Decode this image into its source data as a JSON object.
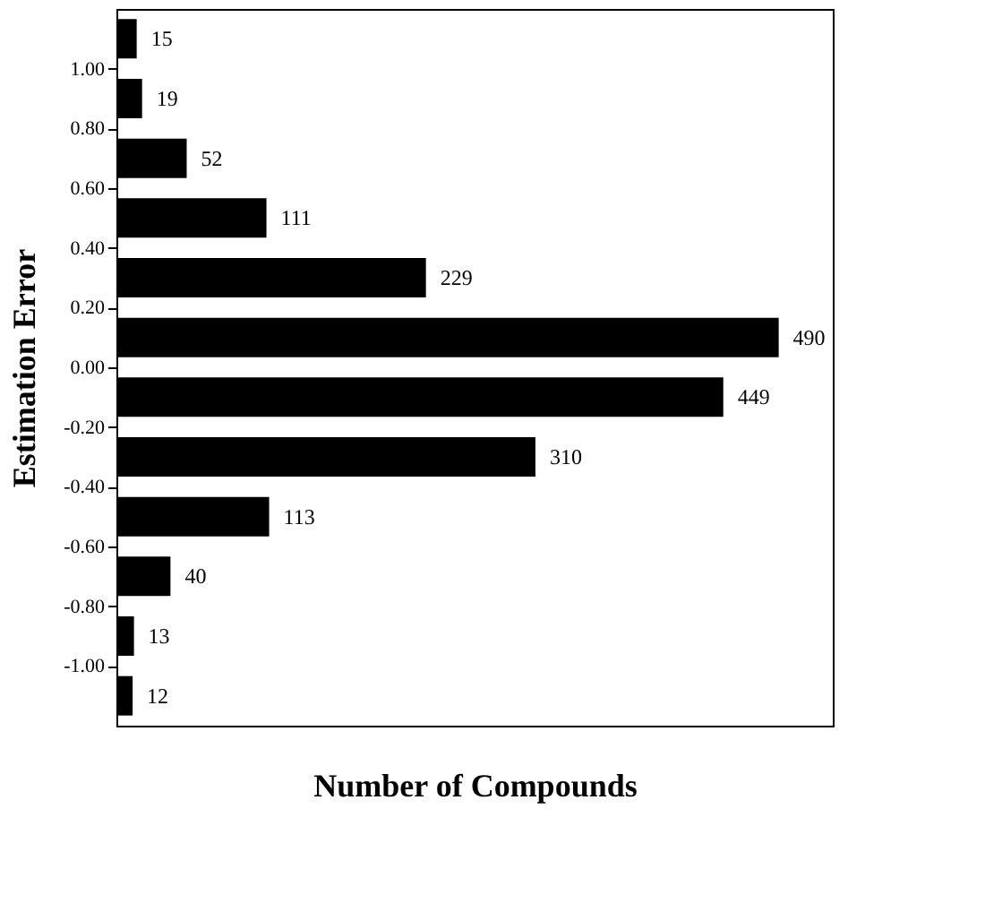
{
  "chart_data": {
    "type": "bar",
    "orientation": "horizontal",
    "xlabel": "Number of Compounds",
    "ylabel": "Estimation Error",
    "x": [
      -1.1,
      -0.9,
      -0.7,
      -0.5,
      -0.3,
      -0.1,
      0.1,
      0.3,
      0.5,
      0.7,
      0.9,
      1.1
    ],
    "values": [
      12,
      13,
      40,
      113,
      310,
      449,
      490,
      229,
      111,
      52,
      19,
      15
    ],
    "color": "#000000",
    "data_labels": true,
    "xlim": [
      0,
      530
    ],
    "ylim": [
      -1.2,
      1.2
    ],
    "yticks": [
      {
        "value": -1.0,
        "label": "-1.00"
      },
      {
        "value": -0.8,
        "label": "-0.80"
      },
      {
        "value": -0.6,
        "label": "-0.60"
      },
      {
        "value": -0.4,
        "label": "-0.40"
      },
      {
        "value": -0.2,
        "label": "-0.20"
      },
      {
        "value": 0.0,
        "label": "0.00"
      },
      {
        "value": 0.2,
        "label": "0.20"
      },
      {
        "value": 0.4,
        "label": "0.40"
      },
      {
        "value": 0.6,
        "label": "0.60"
      },
      {
        "value": 0.8,
        "label": "0.80"
      },
      {
        "value": 1.0,
        "label": "1.00"
      }
    ],
    "tick_labels": "y",
    "grid": false
  }
}
